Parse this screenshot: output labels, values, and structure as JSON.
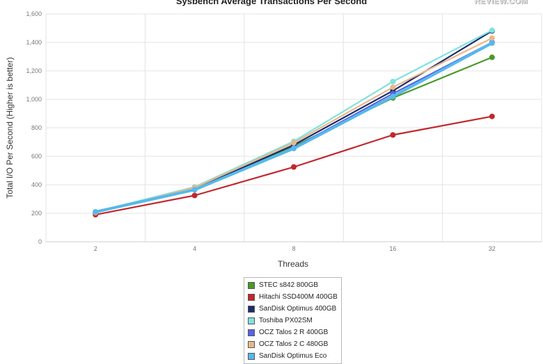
{
  "chart_data": {
    "type": "line",
    "title": "Sysbench Average Transactions Per Second",
    "xlabel": "Threads",
    "ylabel": "Total I/O Per Second (Higher is better)",
    "categories": [
      "2",
      "4",
      "8",
      "16",
      "32"
    ],
    "ylim": [
      0,
      1600
    ],
    "yticks": [
      0,
      200,
      400,
      600,
      800,
      1000,
      1200,
      1400,
      1600
    ],
    "ytick_labels": [
      "0",
      "200",
      "400",
      "600",
      "800",
      "1,000",
      "1,200",
      "1,400",
      "1,600"
    ],
    "grid": true,
    "legend_position": "bottom",
    "series": [
      {
        "name": "STEC s842 800GB",
        "color": "#4a9a2a",
        "values": [
          205,
          375,
          670,
          1010,
          1295
        ]
      },
      {
        "name": "Hitachi SSD400M 400GB",
        "color": "#c1272d",
        "values": [
          190,
          325,
          525,
          750,
          880
        ]
      },
      {
        "name": "SanDisk Optimus 400GB",
        "color": "#1d2a6e",
        "values": [
          205,
          370,
          680,
          1060,
          1480
        ]
      },
      {
        "name": "Toshiba PX02SM",
        "color": "#7ee3dc",
        "values": [
          210,
          385,
          705,
          1125,
          1485
        ]
      },
      {
        "name": "OCZ Talos 2 R 400GB",
        "color": "#5a63e0",
        "values": [
          205,
          365,
          660,
          1040,
          1400
        ]
      },
      {
        "name": "OCZ Talos 2 C 480GB",
        "color": "#e8b88a",
        "values": [
          205,
          380,
          695,
          1085,
          1430
        ]
      },
      {
        "name": "SanDisk Optimus Eco",
        "color": "#55b9ec",
        "values": [
          210,
          365,
          655,
          1020,
          1395
        ]
      }
    ]
  },
  "brand": {
    "logo_text": "REVIEW.COM"
  }
}
